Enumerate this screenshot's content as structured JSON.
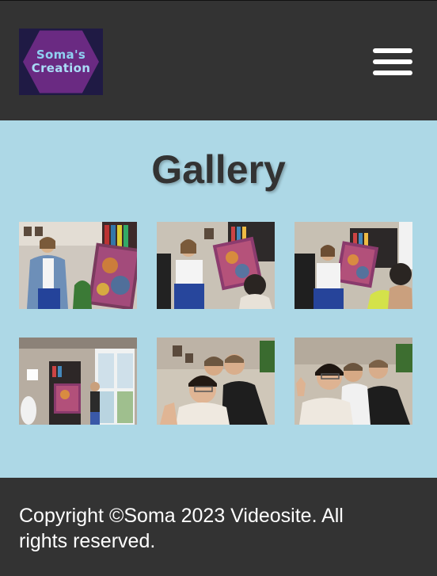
{
  "header": {
    "logo": {
      "line1": "Soma's",
      "line2": "Creation"
    },
    "menu_icon": "hamburger-menu-icon"
  },
  "gallery": {
    "title": "Gallery",
    "photos": [
      {
        "icon": "photo-woman-denim-jacket-with-painting"
      },
      {
        "icon": "photo-woman-holding-painting-interview"
      },
      {
        "icon": "photo-woman-interviewed-with-painting"
      },
      {
        "icon": "photo-room-window-woman-painting"
      },
      {
        "icon": "photo-group-selfie-three-people"
      },
      {
        "icon": "photo-group-selfie-peace-sign"
      }
    ]
  },
  "footer": {
    "copyright": "Copyright ©Soma 2023 Videosite. All rights reserved."
  },
  "colors": {
    "header_bg": "#333333",
    "gallery_bg": "#add8e6",
    "footer_bg": "#333333",
    "title_text": "#333333",
    "footer_text": "#ffffff"
  }
}
